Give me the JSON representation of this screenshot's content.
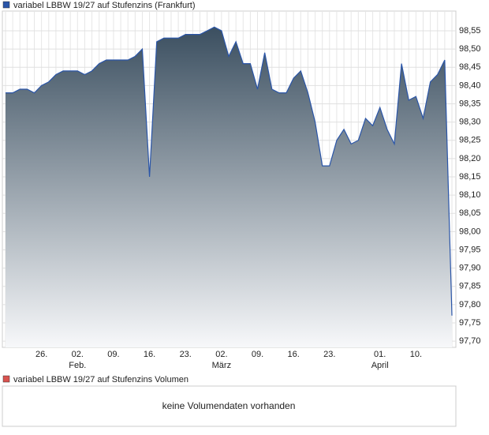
{
  "chart_data": {
    "type": "area",
    "series": [
      {
        "name": "variabel LBBW 19/27 auf Stufenzins (Frankfurt)",
        "color": "#2a55a8",
        "values": [
          98.38,
          98.38,
          98.39,
          98.39,
          98.38,
          98.4,
          98.41,
          98.43,
          98.44,
          98.44,
          98.44,
          98.43,
          98.44,
          98.46,
          98.47,
          98.47,
          98.47,
          98.47,
          98.48,
          98.5,
          98.15,
          98.52,
          98.53,
          98.53,
          98.53,
          98.54,
          98.54,
          98.54,
          98.55,
          98.56,
          98.55,
          98.48,
          98.52,
          98.46,
          98.46,
          98.39,
          98.49,
          98.39,
          98.38,
          98.38,
          98.42,
          98.44,
          98.38,
          98.3,
          98.18,
          98.18,
          98.25,
          98.28,
          98.24,
          98.25,
          98.31,
          98.29,
          98.34,
          98.28,
          98.24,
          98.46,
          98.36,
          98.37,
          98.31,
          98.41,
          98.43,
          98.47,
          97.77
        ]
      }
    ],
    "categories": [
      null,
      null,
      null,
      null,
      null,
      "26.",
      null,
      null,
      null,
      null,
      "02.",
      null,
      null,
      null,
      null,
      "09.",
      null,
      null,
      null,
      null,
      "16.",
      null,
      null,
      null,
      null,
      "23.",
      null,
      null,
      null,
      null,
      "02.",
      null,
      null,
      null,
      null,
      "09.",
      null,
      null,
      null,
      null,
      "16.",
      null,
      null,
      null,
      null,
      "23.",
      null,
      null,
      null,
      null,
      null,
      null,
      "01.",
      null,
      null,
      null,
      null,
      "10.",
      null,
      null,
      null,
      null,
      null
    ],
    "month_labels": [
      null,
      null,
      null,
      null,
      null,
      null,
      null,
      null,
      null,
      null,
      "Feb.",
      null,
      null,
      null,
      null,
      null,
      null,
      null,
      null,
      null,
      null,
      null,
      null,
      null,
      null,
      null,
      null,
      null,
      null,
      null,
      "März",
      null,
      null,
      null,
      null,
      null,
      null,
      null,
      null,
      null,
      null,
      null,
      null,
      null,
      null,
      null,
      null,
      null,
      null,
      null,
      null,
      null,
      "April",
      null,
      null,
      null,
      null,
      null,
      null,
      null,
      null,
      null,
      null
    ],
    "ylim": [
      97.683,
      98.604
    ],
    "yticks": [
      {
        "value": 97.7,
        "label": "97,70"
      },
      {
        "value": 97.75,
        "label": "97,75"
      },
      {
        "value": 97.8,
        "label": "97,80"
      },
      {
        "value": 97.85,
        "label": "97,85"
      },
      {
        "value": 97.9,
        "label": "97,90"
      },
      {
        "value": 97.95,
        "label": "97,95"
      },
      {
        "value": 98.0,
        "label": "98,00"
      },
      {
        "value": 98.05,
        "label": "98,05"
      },
      {
        "value": 98.1,
        "label": "98,10"
      },
      {
        "value": 98.15,
        "label": "98,15"
      },
      {
        "value": 98.2,
        "label": "98,20"
      },
      {
        "value": 98.25,
        "label": "98,25"
      },
      {
        "value": 98.3,
        "label": "98,30"
      },
      {
        "value": 98.35,
        "label": "98,35"
      },
      {
        "value": 98.4,
        "label": "98,40"
      },
      {
        "value": 98.45,
        "label": "98,45"
      },
      {
        "value": 98.5,
        "label": "98,50"
      },
      {
        "value": 98.55,
        "label": "98,55"
      }
    ],
    "grid": true
  },
  "volume_panel": {
    "legend": "variabel LBBW 19/27 auf Stufenzins Volumen",
    "color": "#d9534f",
    "message": "keine Volumendaten vorhanden"
  }
}
